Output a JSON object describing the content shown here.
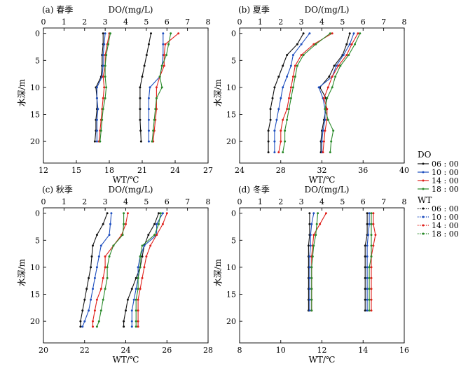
{
  "legend": {
    "do_title": "DO",
    "wt_title": "WT",
    "times": [
      "06 : 00",
      "10 : 00",
      "14 : 00",
      "18 : 00"
    ],
    "colors": [
      "#111111",
      "#1f4fbf",
      "#e0201b",
      "#2a8a2a"
    ]
  },
  "chart_data": [
    {
      "type": "line",
      "panel_label": "(a) 春季",
      "top_axis_label": "DO/(mg/L)",
      "bottom_axis_label": "WT/℃",
      "y_label": "水深/m",
      "do_lim": [
        0,
        8
      ],
      "do_ticks": [
        0,
        1,
        2,
        3,
        4,
        5,
        6,
        7,
        8
      ],
      "wt_lim": [
        12,
        27
      ],
      "wt_ticks": [
        12,
        15,
        18,
        21,
        24,
        27
      ],
      "depth_lim": [
        -1,
        24
      ],
      "depth_ticks": [
        0,
        5,
        10,
        15,
        20
      ],
      "do_series": [
        {
          "depth": [
            0,
            2,
            4,
            6,
            8,
            10,
            12,
            14,
            16,
            18,
            20
          ],
          "values": [
            2.9,
            2.9,
            2.85,
            2.85,
            2.8,
            2.55,
            2.6,
            2.6,
            2.55,
            2.55,
            2.5
          ]
        },
        {
          "depth": [
            0,
            2,
            4,
            6,
            8,
            10,
            12,
            14,
            16,
            18,
            20
          ],
          "values": [
            3.0,
            2.95,
            2.9,
            2.9,
            2.85,
            2.6,
            2.6,
            2.65,
            2.6,
            2.6,
            2.6
          ]
        },
        {
          "depth": [
            0,
            2,
            4,
            6,
            8,
            10,
            12,
            14,
            16,
            18,
            20
          ],
          "values": [
            3.2,
            3.1,
            3.0,
            3.0,
            2.9,
            2.95,
            2.9,
            2.85,
            2.8,
            2.75,
            2.7
          ]
        },
        {
          "depth": [
            0,
            2,
            4,
            6,
            8,
            10,
            12,
            14,
            16,
            18,
            20
          ],
          "values": [
            3.25,
            3.15,
            3.05,
            3.0,
            3.0,
            3.05,
            3.0,
            2.9,
            2.85,
            2.8,
            2.75
          ]
        }
      ],
      "wt_series": [
        {
          "depth": [
            0,
            2,
            4,
            6,
            8,
            10,
            12,
            14,
            16,
            18,
            20
          ],
          "values": [
            21.8,
            21.6,
            21.4,
            21.2,
            21.0,
            20.8,
            20.8,
            20.8,
            20.8,
            20.85,
            20.9
          ]
        },
        {
          "depth": [
            0,
            2,
            4,
            6,
            8,
            10,
            12,
            14,
            16,
            18,
            20
          ],
          "values": [
            22.9,
            22.9,
            22.9,
            22.8,
            22.6,
            21.7,
            21.6,
            21.6,
            21.6,
            21.6,
            21.6
          ]
        },
        {
          "depth": [
            0,
            2,
            4,
            6,
            8,
            10,
            12,
            14,
            16,
            18,
            20
          ],
          "values": [
            24.3,
            23.1,
            23.0,
            23.0,
            22.6,
            22.3,
            22.3,
            22.3,
            22.2,
            22.1,
            22.0
          ]
        },
        {
          "depth": [
            0,
            2,
            4,
            6,
            8,
            10,
            12,
            14,
            16,
            18,
            20
          ],
          "values": [
            23.6,
            23.4,
            23.2,
            22.8,
            22.6,
            22.8,
            22.3,
            22.2,
            22.1,
            22.0,
            21.9
          ]
        }
      ]
    },
    {
      "type": "line",
      "panel_label": "(b) 夏季",
      "top_axis_label": "DO/(mg/L)",
      "bottom_axis_label": "WT/℃",
      "y_label": "水深/m",
      "do_lim": [
        0,
        8
      ],
      "do_ticks": [
        0,
        1,
        2,
        3,
        4,
        5,
        6,
        7,
        8
      ],
      "wt_lim": [
        24,
        40
      ],
      "wt_ticks": [
        24,
        28,
        32,
        36,
        40
      ],
      "depth_lim": [
        -1,
        24
      ],
      "depth_ticks": [
        0,
        5,
        10,
        15,
        20
      ],
      "do_series": [
        {
          "depth": [
            0,
            2,
            4,
            6,
            8,
            10,
            12,
            14,
            16,
            18,
            20,
            22
          ],
          "values": [
            3.1,
            2.8,
            2.3,
            2.1,
            1.9,
            1.7,
            1.6,
            1.5,
            1.5,
            1.4,
            1.4,
            1.4
          ]
        },
        {
          "depth": [
            0,
            2,
            4,
            6,
            8,
            10,
            12,
            14,
            16,
            18,
            20,
            22
          ],
          "values": [
            3.4,
            3.0,
            2.6,
            2.5,
            2.3,
            2.1,
            2.0,
            1.9,
            1.8,
            1.7,
            1.7,
            1.7
          ]
        },
        {
          "depth": [
            0,
            2,
            4,
            6,
            8,
            10,
            12,
            14,
            16,
            18,
            20,
            22
          ],
          "values": [
            4.5,
            3.6,
            3.0,
            2.7,
            2.6,
            2.5,
            2.4,
            2.3,
            2.1,
            2.0,
            2.0,
            1.9
          ]
        },
        {
          "depth": [
            0,
            2,
            4,
            6,
            8,
            10,
            12,
            14,
            16,
            18,
            20,
            22
          ],
          "values": [
            4.4,
            3.7,
            3.1,
            2.8,
            2.7,
            2.6,
            2.5,
            2.4,
            2.3,
            2.2,
            2.2,
            2.1
          ]
        }
      ],
      "wt_series": [
        {
          "depth": [
            0,
            2,
            4,
            6,
            8,
            10,
            12,
            14,
            16,
            18,
            20,
            22
          ],
          "values": [
            34.7,
            34.4,
            34.0,
            33.2,
            32.7,
            31.8,
            32.4,
            32.4,
            32.2,
            32.0,
            31.9,
            31.9
          ]
        },
        {
          "depth": [
            0,
            2,
            4,
            6,
            8,
            10,
            12,
            14,
            16,
            18,
            20,
            22
          ],
          "values": [
            35.1,
            34.7,
            34.1,
            33.4,
            33.0,
            31.7,
            32.1,
            32.3,
            32.3,
            32.1,
            32.0,
            32.0
          ]
        },
        {
          "depth": [
            0,
            2,
            4,
            6,
            8,
            10,
            12,
            14,
            16,
            18,
            20,
            22
          ],
          "values": [
            35.5,
            34.9,
            34.4,
            33.6,
            33.0,
            32.6,
            32.2,
            32.5,
            32.5,
            32.3,
            32.2,
            32.1
          ]
        },
        {
          "depth": [
            0,
            2,
            4,
            6,
            8,
            10,
            12,
            14,
            16,
            18,
            20,
            22
          ],
          "values": [
            35.7,
            35.2,
            34.6,
            33.8,
            33.3,
            33.0,
            32.5,
            32.3,
            32.6,
            33.1,
            32.9,
            32.8
          ]
        }
      ]
    },
    {
      "type": "line",
      "panel_label": "(c) 秋季",
      "top_axis_label": "DO/(mg/L)",
      "bottom_axis_label": "WT/℃",
      "y_label": "水深/m",
      "do_lim": [
        0,
        8
      ],
      "do_ticks": [
        0,
        1,
        2,
        3,
        4,
        5,
        6,
        7,
        8
      ],
      "wt_lim": [
        20,
        28
      ],
      "wt_ticks": [
        20,
        22,
        24,
        26,
        28
      ],
      "depth_lim": [
        -1,
        24
      ],
      "depth_ticks": [
        0,
        5,
        10,
        15,
        20
      ],
      "do_series": [
        {
          "depth": [
            0,
            2,
            4,
            6,
            8,
            10,
            12,
            14,
            16,
            18,
            20,
            21
          ],
          "values": [
            3.1,
            2.9,
            2.6,
            2.4,
            2.35,
            2.3,
            2.2,
            2.1,
            2.0,
            1.9,
            1.8,
            1.8
          ]
        },
        {
          "depth": [
            0,
            2,
            4,
            6,
            8,
            10,
            12,
            14,
            16,
            18,
            20,
            21
          ],
          "values": [
            3.3,
            3.25,
            3.2,
            2.8,
            2.7,
            2.6,
            2.5,
            2.4,
            2.3,
            2.2,
            2.0,
            1.9
          ]
        },
        {
          "depth": [
            0,
            2,
            4,
            6,
            8,
            10,
            12,
            14,
            16,
            18,
            20,
            21
          ],
          "values": [
            4.1,
            4.0,
            3.8,
            3.4,
            3.0,
            3.0,
            2.9,
            2.8,
            2.6,
            2.5,
            2.4,
            2.4
          ]
        },
        {
          "depth": [
            0,
            2,
            4,
            6,
            8,
            10,
            12,
            14,
            16,
            18,
            20,
            21
          ],
          "values": [
            3.9,
            3.9,
            3.85,
            3.4,
            3.2,
            3.1,
            3.1,
            3.0,
            2.9,
            2.8,
            2.7,
            2.6
          ]
        }
      ],
      "wt_series": [
        {
          "depth": [
            0,
            2,
            4,
            6,
            8,
            10,
            12,
            14,
            16,
            18,
            20,
            21
          ],
          "values": [
            25.6,
            25.4,
            25.1,
            24.9,
            24.8,
            24.7,
            24.5,
            24.3,
            24.1,
            24.0,
            23.9,
            23.9
          ]
        },
        {
          "depth": [
            0,
            2,
            4,
            6,
            8,
            10,
            12,
            14,
            16,
            18,
            20,
            21
          ],
          "values": [
            25.8,
            25.5,
            25.5,
            24.9,
            24.7,
            24.6,
            24.6,
            24.5,
            24.4,
            24.3,
            24.3,
            24.3
          ]
        },
        {
          "depth": [
            0,
            2,
            4,
            6,
            8,
            10,
            12,
            14,
            16,
            18,
            20,
            21
          ],
          "values": [
            26.0,
            25.8,
            25.5,
            25.2,
            25.0,
            24.9,
            24.8,
            24.7,
            24.6,
            24.6,
            24.6,
            24.6
          ]
        },
        {
          "depth": [
            0,
            2,
            4,
            6,
            8,
            10,
            12,
            14,
            16,
            18,
            20,
            21
          ],
          "values": [
            25.7,
            25.6,
            25.4,
            24.8,
            24.7,
            24.7,
            24.6,
            24.6,
            24.5,
            24.5,
            24.5,
            24.5
          ]
        }
      ]
    },
    {
      "type": "line",
      "panel_label": "(d) 冬季",
      "top_axis_label": "DO/(mg/L)",
      "bottom_axis_label": "WT/℃",
      "y_label": "水深/m",
      "do_lim": [
        0,
        8
      ],
      "do_ticks": [
        0,
        1,
        2,
        3,
        4,
        5,
        6,
        7,
        8
      ],
      "wt_lim": [
        8,
        16
      ],
      "wt_ticks": [
        8,
        10,
        12,
        14,
        16
      ],
      "depth_lim": [
        -1,
        24
      ],
      "depth_ticks": [
        0,
        5,
        10,
        15,
        20
      ],
      "do_series": [
        {
          "depth": [
            0,
            2,
            4,
            6,
            8,
            10,
            12,
            14,
            16,
            18
          ],
          "values": [
            3.4,
            3.4,
            3.4,
            3.35,
            3.35,
            3.35,
            3.35,
            3.35,
            3.35,
            3.35
          ]
        },
        {
          "depth": [
            0,
            2,
            4,
            6,
            8,
            10,
            12,
            14,
            16,
            18
          ],
          "values": [
            3.6,
            3.5,
            3.45,
            3.45,
            3.4,
            3.4,
            3.4,
            3.4,
            3.4,
            3.4
          ]
        },
        {
          "depth": [
            0,
            2,
            4,
            6,
            8,
            10,
            12,
            14,
            16,
            18
          ],
          "values": [
            4.2,
            3.9,
            3.6,
            3.55,
            3.5,
            3.5,
            3.5,
            3.5,
            3.5,
            3.5
          ]
        },
        {
          "depth": [
            0,
            2,
            4,
            6,
            8,
            10,
            12,
            14,
            16,
            18
          ],
          "values": [
            3.8,
            3.75,
            3.7,
            3.6,
            3.55,
            3.5,
            3.5,
            3.5,
            3.5,
            3.5
          ]
        }
      ],
      "wt_series": [
        {
          "depth": [
            0,
            2,
            4,
            6,
            8,
            10,
            12,
            14,
            16,
            18
          ],
          "values": [
            14.2,
            14.2,
            14.2,
            14.1,
            14.1,
            14.1,
            14.1,
            14.1,
            14.1,
            14.1
          ]
        },
        {
          "depth": [
            0,
            2,
            4,
            6,
            8,
            10,
            12,
            14,
            16,
            18
          ],
          "values": [
            14.3,
            14.3,
            14.25,
            14.2,
            14.2,
            14.2,
            14.2,
            14.2,
            14.2,
            14.2
          ]
        },
        {
          "depth": [
            0,
            2,
            4,
            6,
            8,
            10,
            12,
            14,
            16,
            18
          ],
          "values": [
            14.5,
            14.5,
            14.6,
            14.5,
            14.4,
            14.4,
            14.4,
            14.4,
            14.4,
            14.4
          ]
        },
        {
          "depth": [
            0,
            2,
            4,
            6,
            8,
            10,
            12,
            14,
            16,
            18
          ],
          "values": [
            14.4,
            14.4,
            14.4,
            14.4,
            14.4,
            14.3,
            14.3,
            14.3,
            14.3,
            14.3
          ]
        }
      ]
    }
  ]
}
